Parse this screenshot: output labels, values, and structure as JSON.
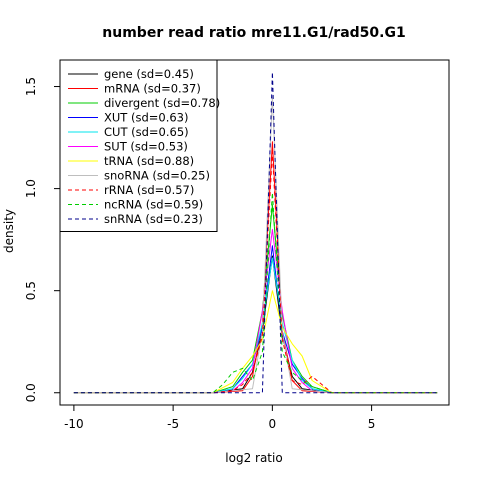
{
  "chart_data": {
    "type": "line",
    "title": "number read ratio mre11.G1/rad50.G1",
    "xlabel": "log2 ratio",
    "ylabel": "density",
    "xlim": [
      -10.7,
      8.9
    ],
    "ylim": [
      -0.06,
      1.63
    ],
    "xticks": [
      -10,
      -5,
      0,
      5
    ],
    "xtick_labels": [
      "-10",
      "-5",
      "0",
      "5"
    ],
    "yticks": [
      0.0,
      0.5,
      1.0,
      1.5
    ],
    "ytick_labels": [
      "0.0",
      "0.5",
      "1.0",
      "1.5"
    ],
    "grid": false,
    "legend_position": "top-left",
    "series": [
      {
        "name": "gene (sd=0.45)",
        "color": "#000000",
        "dash": "solid",
        "x": [
          -10,
          -3,
          -1.5,
          -1.0,
          -0.5,
          0,
          0.5,
          1.0,
          1.5,
          3,
          8.3
        ],
        "y": [
          0,
          0,
          0.02,
          0.1,
          0.3,
          0.67,
          0.28,
          0.08,
          0.02,
          0,
          0
        ]
      },
      {
        "name": "mRNA (sd=0.37)",
        "color": "#ff0000",
        "dash": "solid",
        "x": [
          -10,
          -3,
          -1.5,
          -1.0,
          -0.5,
          0,
          0.5,
          1.0,
          1.5,
          3,
          8.3
        ],
        "y": [
          0,
          0,
          0.01,
          0.08,
          0.34,
          1.23,
          0.3,
          0.06,
          0.01,
          0,
          0
        ]
      },
      {
        "name": "divergent (sd=0.78)",
        "color": "#00cd00",
        "dash": "solid",
        "x": [
          -10,
          -3,
          -2.0,
          -1.5,
          -1.0,
          -0.5,
          0,
          0.5,
          1.0,
          1.5,
          2.0,
          3,
          8.3
        ],
        "y": [
          0,
          0,
          0.03,
          0.1,
          0.16,
          0.4,
          0.92,
          0.38,
          0.16,
          0.08,
          0.03,
          0,
          0
        ]
      },
      {
        "name": "XUT (sd=0.63)",
        "color": "#0000ff",
        "dash": "solid",
        "x": [
          -10,
          -3,
          -2.0,
          -1.5,
          -1.0,
          -0.5,
          0,
          0.5,
          1.0,
          1.5,
          2.0,
          3,
          8.3
        ],
        "y": [
          0,
          0,
          0.02,
          0.08,
          0.14,
          0.32,
          0.72,
          0.3,
          0.14,
          0.07,
          0.02,
          0,
          0
        ]
      },
      {
        "name": "CUT (sd=0.65)",
        "color": "#00e5ee",
        "dash": "solid",
        "x": [
          -10,
          -3,
          -2.0,
          -1.5,
          -1.0,
          -0.5,
          0,
          0.5,
          1.0,
          1.5,
          2.0,
          3,
          8.3
        ],
        "y": [
          0,
          0,
          0.02,
          0.07,
          0.14,
          0.34,
          0.66,
          0.34,
          0.16,
          0.06,
          0.02,
          0,
          0
        ]
      },
      {
        "name": "SUT (sd=0.53)",
        "color": "#ff00ff",
        "dash": "solid",
        "x": [
          -10,
          -3,
          -2.0,
          -1.5,
          -1.0,
          -0.5,
          0,
          0.5,
          1.0,
          1.5,
          2.0,
          3,
          8.3
        ],
        "y": [
          0,
          0,
          0.01,
          0.05,
          0.12,
          0.4,
          0.8,
          0.4,
          0.12,
          0.05,
          0.01,
          0,
          0
        ]
      },
      {
        "name": "tRNA (sd=0.88)",
        "color": "#ffff00",
        "dash": "solid",
        "x": [
          -10,
          -3,
          -2.0,
          -1.5,
          -1.0,
          -0.5,
          0,
          0.5,
          1.0,
          1.5,
          2.0,
          3,
          8.3
        ],
        "y": [
          0,
          0,
          0.05,
          0.12,
          0.18,
          0.26,
          0.5,
          0.32,
          0.24,
          0.18,
          0.06,
          0,
          0
        ]
      },
      {
        "name": "snoRNA (sd=0.25)",
        "color": "#bebebe",
        "dash": "solid",
        "x": [
          -10,
          -3,
          -1.0,
          -0.5,
          0,
          0.5,
          1.0,
          3,
          8.3
        ],
        "y": [
          0,
          0,
          0.02,
          0.3,
          1.45,
          0.3,
          0.02,
          0,
          0
        ]
      },
      {
        "name": "rRNA (sd=0.57)",
        "color": "#ff0000",
        "dash": "dashed",
        "x": [
          -10,
          -3,
          -2.0,
          -1.5,
          -1.0,
          -0.5,
          0,
          0.5,
          1.0,
          1.5,
          2.0,
          3,
          8.3
        ],
        "y": [
          0,
          0,
          0.01,
          0.04,
          0.1,
          0.28,
          1.18,
          0.26,
          0.06,
          0.04,
          0.08,
          0,
          0
        ]
      },
      {
        "name": "ncRNA (sd=0.59)",
        "color": "#00cd00",
        "dash": "dashed",
        "x": [
          -10,
          -3,
          -2.5,
          -2.0,
          -1.5,
          -1.0,
          -0.5,
          0,
          0.5,
          1.0,
          1.5,
          2.0,
          3,
          8.3
        ],
        "y": [
          0,
          0,
          0.04,
          0.1,
          0.12,
          0.06,
          0.2,
          0.98,
          0.2,
          0.1,
          0.06,
          0.03,
          0,
          0
        ]
      },
      {
        "name": "snRNA (sd=0.23)",
        "color": "#00008b",
        "dash": "dashed",
        "x": [
          -10,
          -3,
          -0.5,
          0,
          0.5,
          3,
          8.3
        ],
        "y": [
          0,
          0,
          0,
          1.57,
          0,
          0,
          0
        ]
      }
    ]
  }
}
